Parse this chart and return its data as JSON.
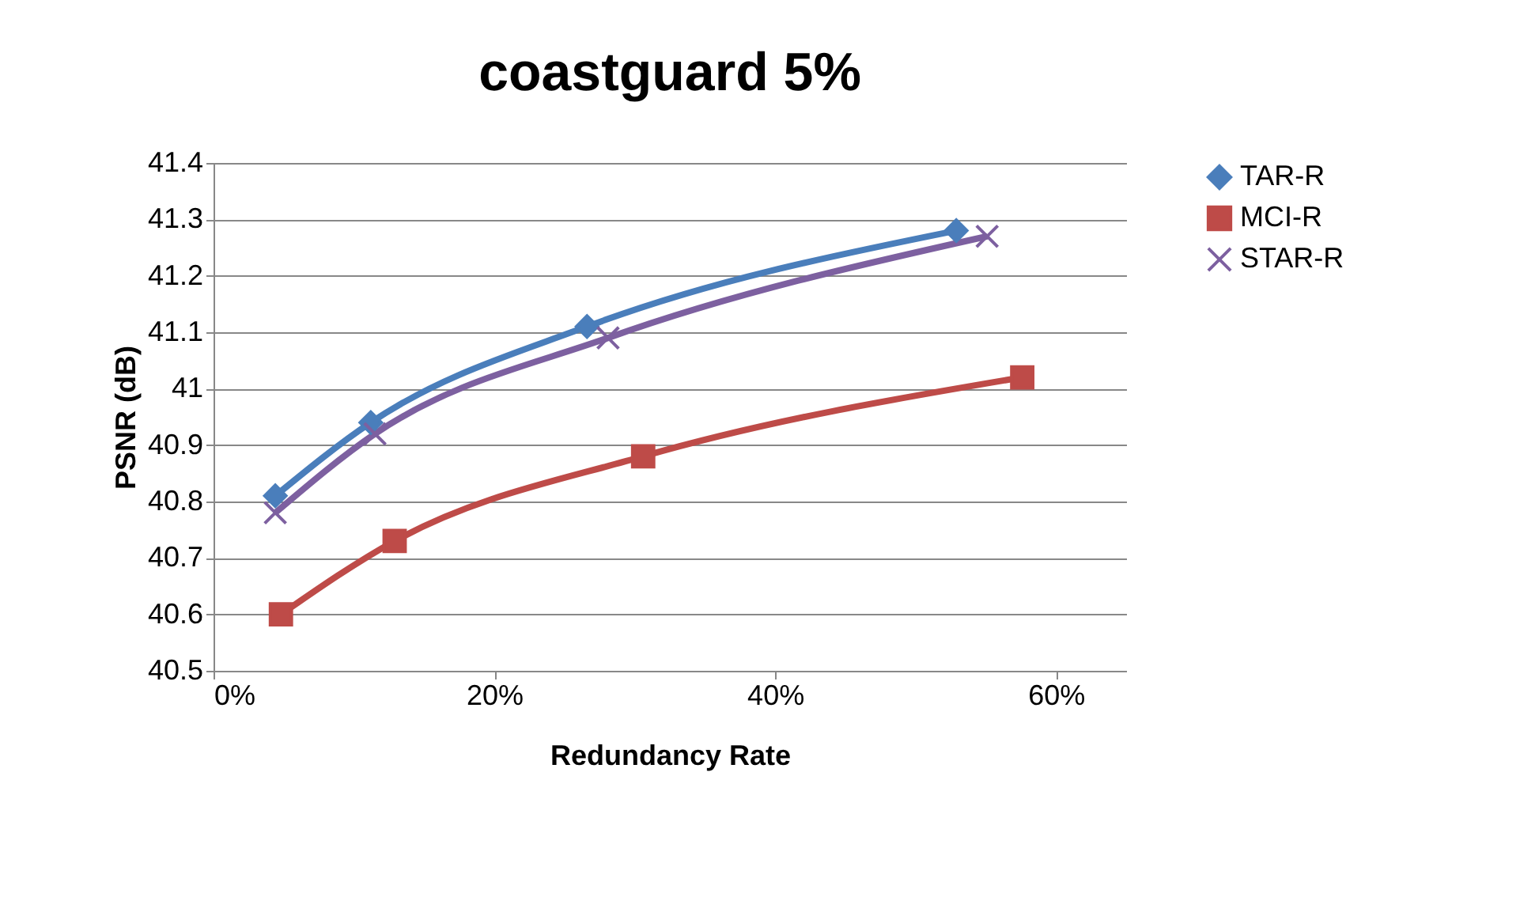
{
  "chart_data": {
    "type": "line",
    "title": "coastguard 5%",
    "xlabel": "Redundancy Rate",
    "ylabel": "PSNR (dB)",
    "series": [
      {
        "name": "TAR-R",
        "color": "#4a7ebb",
        "marker": "diamond",
        "x": [
          4.4,
          11.2,
          26.6,
          52.9
        ],
        "values": [
          40.81,
          40.94,
          41.11,
          41.28
        ]
      },
      {
        "name": "MCI-R",
        "color": "#be4b48",
        "marker": "square",
        "x": [
          4.8,
          12.9,
          30.6,
          57.6
        ],
        "values": [
          40.6,
          40.73,
          40.88,
          41.02
        ]
      },
      {
        "name": "STAR-R",
        "color": "#7d60a0",
        "marker": "cross",
        "x": [
          4.4,
          11.5,
          28.1,
          55.1
        ],
        "values": [
          40.78,
          40.92,
          41.09,
          41.27
        ]
      }
    ],
    "xlim": [
      0,
      65
    ],
    "xticks": [
      {
        "value": 0,
        "label": "0%"
      },
      {
        "value": 20,
        "label": "20%"
      },
      {
        "value": 40,
        "label": "40%"
      },
      {
        "value": 60,
        "label": "60%"
      }
    ],
    "ylim": [
      40.5,
      41.4
    ],
    "yticks": [
      40.5,
      40.6,
      40.7,
      40.8,
      40.9,
      41,
      41.1,
      41.2,
      41.3,
      41.4
    ],
    "grid": "y",
    "legend": "right",
    "line_style": "solid"
  }
}
